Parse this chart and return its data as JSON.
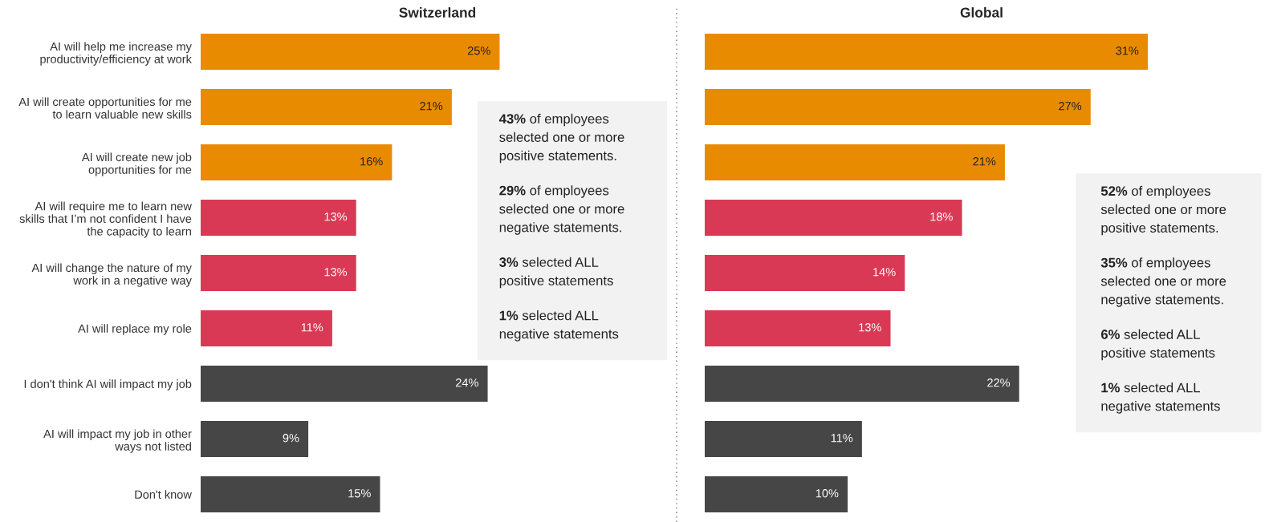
{
  "chart_data": [
    {
      "type": "bar",
      "orientation": "horizontal",
      "title": "Switzerland",
      "value_labels": [
        "25%",
        "21%",
        "16%",
        "13%",
        "13%",
        "11%",
        "24%",
        "9%",
        "15%"
      ],
      "tick_labels": "y",
      "categories": [
        "AI will help me increase my\nproductivity/efficiency at work",
        "AI will create opportunities for me\nto learn valuable new skills",
        "AI will create new job\nopportunities for me",
        "AI will require me to learn new\nskills that I’m not confident I have\nthe capacity to learn",
        "AI will change the nature of my\nwork in a negative way",
        "AI will replace my role",
        "I don't think AI will impact my job",
        "AI will impact my job in other\nways not listed",
        "Don't know"
      ],
      "values": [
        25,
        21,
        16,
        13,
        13,
        11,
        24,
        9,
        15
      ],
      "colors": [
        "#e98b00",
        "#e98b00",
        "#e98b00",
        "#d93954",
        "#d93954",
        "#d93954",
        "#464646",
        "#464646",
        "#464646"
      ],
      "annotations": [
        "43% of employees\nselected one or more\npositive statements.",
        "29% of employees\nselected one or more\nnegative statements.",
        "3% selected ALL\npositive statements",
        "1% selected ALL\nnegative statements"
      ]
    },
    {
      "type": "bar",
      "orientation": "horizontal",
      "title": "Global",
      "value_labels": [
        "31%",
        "27%",
        "21%",
        "18%",
        "14%",
        "13%",
        "22%",
        "11%",
        "10%"
      ],
      "tick_labels": false,
      "categories": [
        null,
        null,
        null,
        null,
        null,
        null,
        null,
        null,
        null
      ],
      "values": [
        31,
        27,
        21,
        18,
        14,
        13,
        22,
        11,
        10
      ],
      "colors": [
        "#e98b00",
        "#e98b00",
        "#e98b00",
        "#d93954",
        "#d93954",
        "#d93954",
        "#464646",
        "#464646",
        "#464646"
      ],
      "annotations": [
        "52% of employees\nselected one or more\npositive statements.",
        "35% of employees\nselected one or more\nnegative statements.",
        "6% selected ALL\npositive statements",
        "1% selected ALL\nnegative statements"
      ]
    }
  ]
}
